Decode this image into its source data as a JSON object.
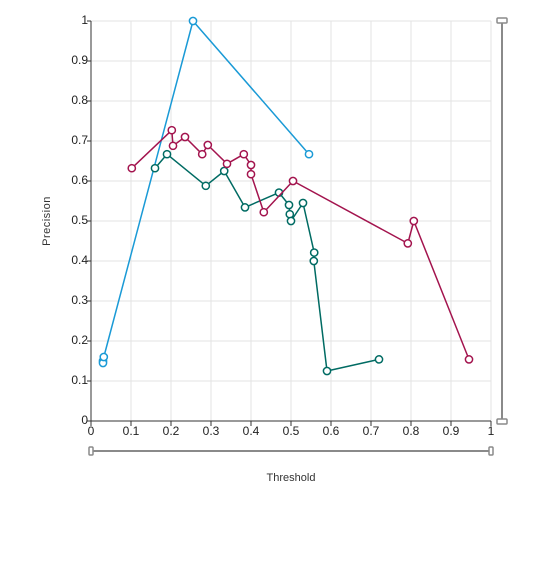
{
  "chart_data": {
    "type": "line",
    "title": "",
    "xlabel": "Threshold",
    "ylabel": "Precision",
    "xlim": [
      0,
      1
    ],
    "ylim": [
      0,
      1
    ],
    "x_ticks": [
      "0",
      "0.1",
      "0.2",
      "0.3",
      "0.4",
      "0.5",
      "0.6",
      "0.7",
      "0.8",
      "0.9",
      "1"
    ],
    "y_ticks": [
      "0",
      "0.1",
      "0.2",
      "0.3",
      "0.4",
      "0.5",
      "0.6",
      "0.7",
      "0.8",
      "0.9",
      "1"
    ],
    "grid": true,
    "legend": "none",
    "series": [
      {
        "color": "#1a9ad6",
        "points": [
          [
            0.03,
            0.15
          ],
          [
            0.03,
            0.145
          ],
          [
            0.032,
            0.16
          ],
          [
            0.255,
            1.0
          ],
          [
            0.545,
            0.667
          ]
        ]
      },
      {
        "color": "#006b63",
        "points": [
          [
            0.16,
            0.632
          ],
          [
            0.19,
            0.667
          ],
          [
            0.287,
            0.588
          ],
          [
            0.333,
            0.625
          ],
          [
            0.385,
            0.534
          ],
          [
            0.47,
            0.571
          ],
          [
            0.495,
            0.54
          ],
          [
            0.497,
            0.517
          ],
          [
            0.5,
            0.5
          ],
          [
            0.53,
            0.545
          ],
          [
            0.558,
            0.421
          ],
          [
            0.557,
            0.4
          ],
          [
            0.59,
            0.125
          ],
          [
            0.72,
            0.154
          ]
        ]
      },
      {
        "color": "#a3144e",
        "points": [
          [
            0.102,
            0.632
          ],
          [
            0.202,
            0.727
          ],
          [
            0.205,
            0.688
          ],
          [
            0.235,
            0.71
          ],
          [
            0.278,
            0.667
          ],
          [
            0.292,
            0.69
          ],
          [
            0.34,
            0.643
          ],
          [
            0.382,
            0.667
          ],
          [
            0.4,
            0.64
          ],
          [
            0.4,
            0.617
          ],
          [
            0.432,
            0.522
          ],
          [
            0.505,
            0.6
          ],
          [
            0.792,
            0.444
          ],
          [
            0.807,
            0.5
          ],
          [
            0.945,
            0.154
          ]
        ]
      }
    ]
  }
}
